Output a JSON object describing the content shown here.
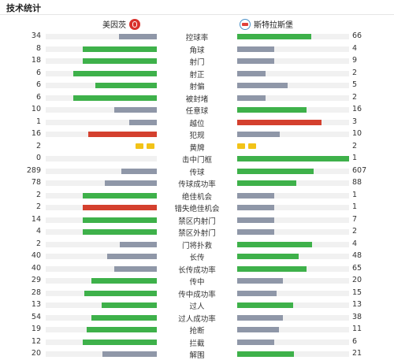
{
  "header": {
    "title": "技术统计"
  },
  "teams": {
    "home": "美因茨",
    "away": "斯特拉斯堡"
  },
  "colors": {
    "green": "#3eb14a",
    "gray": "#8f97a8",
    "red": "#d4402e",
    "yellow": "#f2c318",
    "track": "#f1f1f1"
  },
  "stats": [
    {
      "label": "控球率",
      "home": "34",
      "away": "66",
      "home_fill": 0.34,
      "away_fill": 0.66,
      "home_color": "gray",
      "away_color": "green"
    },
    {
      "label": "角球",
      "home": "8",
      "away": "4",
      "home_fill": 0.67,
      "away_fill": 0.33,
      "home_color": "green",
      "away_color": "gray"
    },
    {
      "label": "射门",
      "home": "18",
      "away": "9",
      "home_fill": 0.67,
      "away_fill": 0.33,
      "home_color": "green",
      "away_color": "gray"
    },
    {
      "label": "射正",
      "home": "6",
      "away": "2",
      "home_fill": 0.75,
      "away_fill": 0.25,
      "home_color": "green",
      "away_color": "gray"
    },
    {
      "label": "射偏",
      "home": "6",
      "away": "5",
      "home_fill": 0.55,
      "away_fill": 0.45,
      "home_color": "green",
      "away_color": "gray"
    },
    {
      "label": "被封堵",
      "home": "6",
      "away": "2",
      "home_fill": 0.75,
      "away_fill": 0.25,
      "home_color": "green",
      "away_color": "gray"
    },
    {
      "label": "任意球",
      "home": "10",
      "away": "16",
      "home_fill": 0.38,
      "away_fill": 0.62,
      "home_color": "gray",
      "away_color": "green"
    },
    {
      "label": "越位",
      "home": "1",
      "away": "3",
      "home_fill": 0.25,
      "away_fill": 0.75,
      "home_color": "gray",
      "away_color": "red"
    },
    {
      "label": "犯规",
      "home": "16",
      "away": "10",
      "home_fill": 0.62,
      "away_fill": 0.38,
      "home_color": "red",
      "away_color": "gray"
    },
    {
      "label": "黄牌",
      "home": "2",
      "away": "2",
      "cards": true
    },
    {
      "label": "击中门框",
      "home": "0",
      "away": "1",
      "home_fill": 0.0,
      "away_fill": 1.0,
      "home_color": "gray",
      "away_color": "green"
    },
    {
      "label": "传球",
      "home": "289",
      "away": "607",
      "home_fill": 0.32,
      "away_fill": 0.68,
      "home_color": "gray",
      "away_color": "green"
    },
    {
      "label": "传球成功率",
      "home": "78",
      "away": "88",
      "home_fill": 0.47,
      "away_fill": 0.53,
      "home_color": "gray",
      "away_color": "green"
    },
    {
      "label": "绝佳机会",
      "home": "2",
      "away": "1",
      "home_fill": 0.67,
      "away_fill": 0.33,
      "home_color": "green",
      "away_color": "gray"
    },
    {
      "label": "错失绝佳机会",
      "home": "2",
      "away": "1",
      "home_fill": 0.67,
      "away_fill": 0.33,
      "home_color": "red",
      "away_color": "gray"
    },
    {
      "label": "禁区内射门",
      "home": "14",
      "away": "7",
      "home_fill": 0.67,
      "away_fill": 0.33,
      "home_color": "green",
      "away_color": "gray"
    },
    {
      "label": "禁区外射门",
      "home": "4",
      "away": "2",
      "home_fill": 0.67,
      "away_fill": 0.33,
      "home_color": "green",
      "away_color": "gray"
    },
    {
      "label": "门将扑救",
      "home": "2",
      "away": "4",
      "home_fill": 0.33,
      "away_fill": 0.67,
      "home_color": "gray",
      "away_color": "green"
    },
    {
      "label": "长传",
      "home": "40",
      "away": "48",
      "home_fill": 0.45,
      "away_fill": 0.55,
      "home_color": "gray",
      "away_color": "green"
    },
    {
      "label": "长传成功率",
      "home": "40",
      "away": "65",
      "home_fill": 0.38,
      "away_fill": 0.62,
      "home_color": "gray",
      "away_color": "green"
    },
    {
      "label": "传中",
      "home": "29",
      "away": "20",
      "home_fill": 0.59,
      "away_fill": 0.41,
      "home_color": "green",
      "away_color": "gray"
    },
    {
      "label": "传中成功率",
      "home": "28",
      "away": "15",
      "home_fill": 0.65,
      "away_fill": 0.35,
      "home_color": "green",
      "away_color": "gray"
    },
    {
      "label": "过人",
      "home": "13",
      "away": "13",
      "home_fill": 0.5,
      "away_fill": 0.5,
      "home_color": "green",
      "away_color": "green"
    },
    {
      "label": "过人成功率",
      "home": "54",
      "away": "38",
      "home_fill": 0.59,
      "away_fill": 0.41,
      "home_color": "green",
      "away_color": "gray"
    },
    {
      "label": "抢断",
      "home": "19",
      "away": "11",
      "home_fill": 0.63,
      "away_fill": 0.37,
      "home_color": "green",
      "away_color": "gray"
    },
    {
      "label": "拦截",
      "home": "12",
      "away": "6",
      "home_fill": 0.67,
      "away_fill": 0.33,
      "home_color": "green",
      "away_color": "gray"
    },
    {
      "label": "解围",
      "home": "20",
      "away": "21",
      "home_fill": 0.49,
      "away_fill": 0.51,
      "home_color": "gray",
      "away_color": "green"
    }
  ]
}
